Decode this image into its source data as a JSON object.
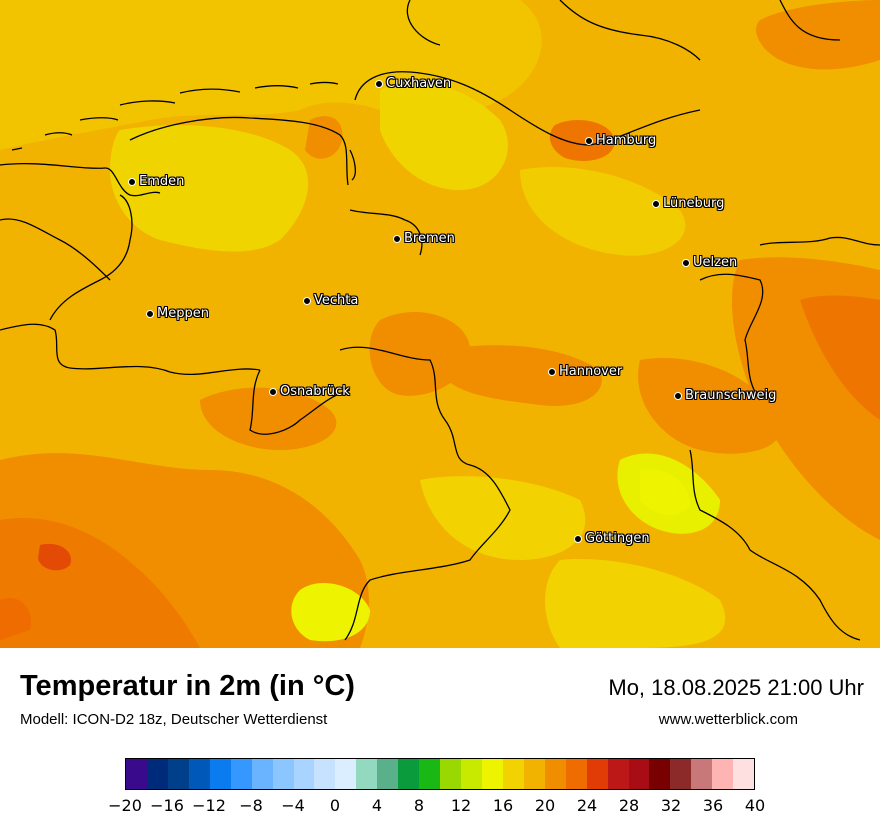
{
  "header": {
    "title": "Temperatur in 2m (in °C)",
    "subtitle": "Modell: ICON-D2 18z, Deutscher Wetterdienst",
    "datetime": "Mo, 18.08.2025 21:00 Uhr",
    "website": "www.wetterblick.com"
  },
  "cities": [
    {
      "name": "Cuxhaven"
    },
    {
      "name": "Hamburg"
    },
    {
      "name": "Emden"
    },
    {
      "name": "Lüneburg"
    },
    {
      "name": "Bremen"
    },
    {
      "name": "Uelzen"
    },
    {
      "name": "Vechta"
    },
    {
      "name": "Meppen"
    },
    {
      "name": "Hannover"
    },
    {
      "name": "Osnabrück"
    },
    {
      "name": "Braunschweig"
    },
    {
      "name": "Göttingen"
    }
  ],
  "legend": {
    "ticks": [
      "−20",
      "−16",
      "−12",
      "−8",
      "−4",
      "0",
      "4",
      "8",
      "12",
      "16",
      "20",
      "24",
      "28",
      "32",
      "36",
      "40"
    ],
    "colors": [
      "#3a0a8c",
      "#002b7a",
      "#003f8a",
      "#0058b8",
      "#0a7cf0",
      "#3498ff",
      "#6ab4ff",
      "#8cc6ff",
      "#a8d4ff",
      "#c6e2ff",
      "#dbeeff",
      "#93d9bf",
      "#5ab08a",
      "#0a9c3c",
      "#19b814",
      "#99d800",
      "#c8ea00",
      "#eef400",
      "#f2d200",
      "#f2b300",
      "#f08e00",
      "#ee6c00",
      "#e23c06",
      "#bc1818",
      "#a80c14",
      "#780000",
      "#8c2a2a",
      "#c87878",
      "#ffb4b4",
      "#ffe0e0"
    ]
  }
}
